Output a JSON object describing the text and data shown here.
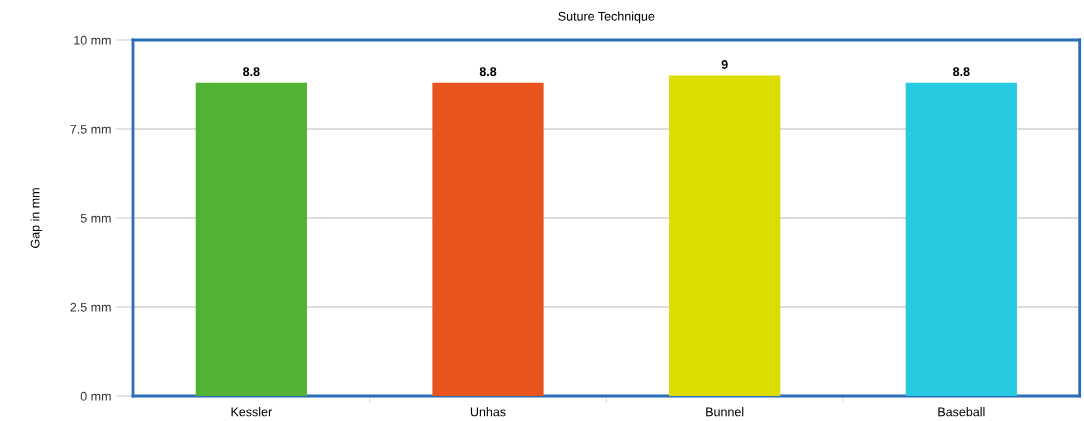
{
  "chart_data": {
    "type": "bar",
    "title": "Suture Technique",
    "ylabel": "Gap in mm",
    "categories": [
      "Kessler",
      "Unhas",
      "Bunnel",
      "Baseball"
    ],
    "values": [
      8.8,
      8.8,
      9,
      8.8
    ],
    "colors": [
      "#52b233",
      "#e8541c",
      "#dcdc00",
      "#26c9e0"
    ],
    "ylim": [
      0,
      10
    ],
    "yticks": [
      {
        "value": 0,
        "label": "0 mm"
      },
      {
        "value": 2.5,
        "label": "2.5 mm"
      },
      {
        "value": 5,
        "label": "5 mm"
      },
      {
        "value": 7.5,
        "label": "7.5 mm"
      },
      {
        "value": 10,
        "label": "10 mm"
      }
    ],
    "grid": "y",
    "data_labels": true,
    "legend": false
  }
}
